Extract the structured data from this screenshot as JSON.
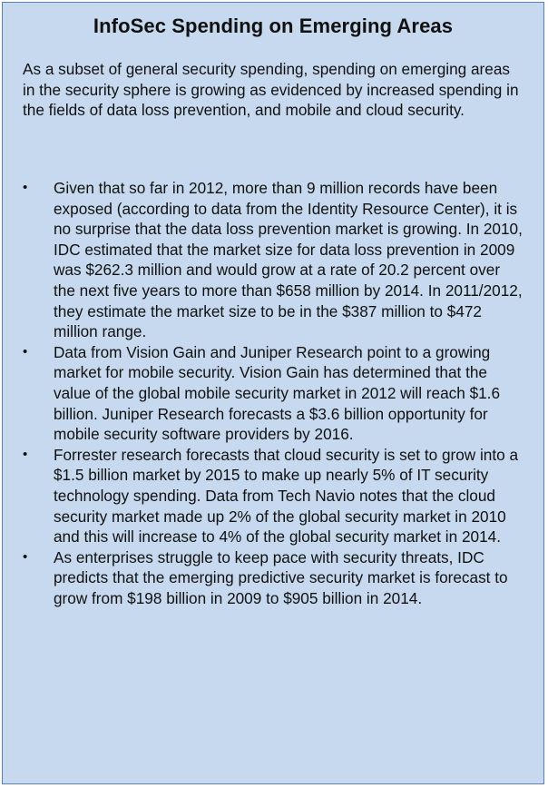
{
  "document": {
    "title": "InfoSec Spending on Emerging Areas",
    "intro": "As a subset of general security spending, spending on emerging areas in the security sphere is growing as evidenced by increased spending in the fields of data loss prevention, and mobile and cloud security.",
    "bullet_glyph": "•",
    "bullets": [
      "Given that so far in 2012, more than 9 million records have been exposed (according to data from the Identity Resource Center), it is no surprise that the data loss prevention market is growing. In 2010, IDC estimated that the market size for data loss prevention in 2009 was $262.3 million and would grow at a rate of 20.2 percent over the next five years to more than $658 million by 2014. In 2011/2012, they estimate the market size to be in the $387 million to $472 million range.",
      "Data from Vision Gain and Juniper Research point to a growing market for mobile security. Vision Gain has determined that the value of the global mobile security market in 2012 will reach $1.6 billion. Juniper Research forecasts a $3.6 billion opportunity for mobile security software providers by 2016.",
      "Forrester research forecasts that cloud security is set to grow into a $1.5 billion market by 2015 to make up nearly 5% of IT security technology spending. Data from Tech Navio notes that the cloud security market made up 2% of the global security market in 2010 and this will increase to 4% of the global security market in 2014.",
      "As enterprises struggle to keep pace with security threats, IDC predicts that the emerging predictive security market is forecast to grow from $198 billion in 2009 to $905 billion in 2014."
    ]
  },
  "colors": {
    "panel_background": "#c6d9ee",
    "panel_border": "#5b7fae",
    "text": "#111111"
  }
}
